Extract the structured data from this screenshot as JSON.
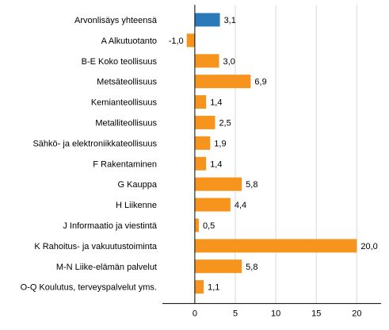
{
  "chart_data": {
    "type": "bar",
    "orientation": "horizontal",
    "title": "",
    "xlabel": "",
    "ylabel": "",
    "xlim": [
      -4,
      23
    ],
    "xticks": [
      0,
      5,
      10,
      15,
      20
    ],
    "xtick_labels": [
      "0",
      "5",
      "10",
      "15",
      "20"
    ],
    "grid": true,
    "legend": "none",
    "colors": {
      "highlight": "#2a7ab9",
      "default": "#f7941d"
    },
    "categories": [
      "Arvonlisäys yhteensä",
      "A Alkutuotanto",
      "B-E Koko teollisuus",
      "Metsäteollisuus",
      "Kemianteollisuus",
      "Metalliteollisuus",
      "Sähkö- ja elektroniikkateollisuus",
      "F Rakentaminen",
      "G Kauppa",
      "H Liikenne",
      "J Informaatio ja viestintä",
      "K Rahoitus- ja vakuutustoiminta",
      "M-N Liike-elämän palvelut",
      "O-Q Koulutus, terveyspalvelut yms."
    ],
    "values": [
      3.1,
      -1.0,
      3.0,
      6.9,
      1.4,
      2.5,
      1.9,
      1.4,
      5.8,
      4.4,
      0.5,
      20.0,
      5.8,
      1.1
    ],
    "value_labels": [
      "3,1",
      "-1,0",
      "3,0",
      "6,9",
      "1,4",
      "2,5",
      "1,9",
      "1,4",
      "5,8",
      "4,4",
      "0,5",
      "20,0",
      "5,8",
      "1,1"
    ],
    "highlight_index": 0
  }
}
